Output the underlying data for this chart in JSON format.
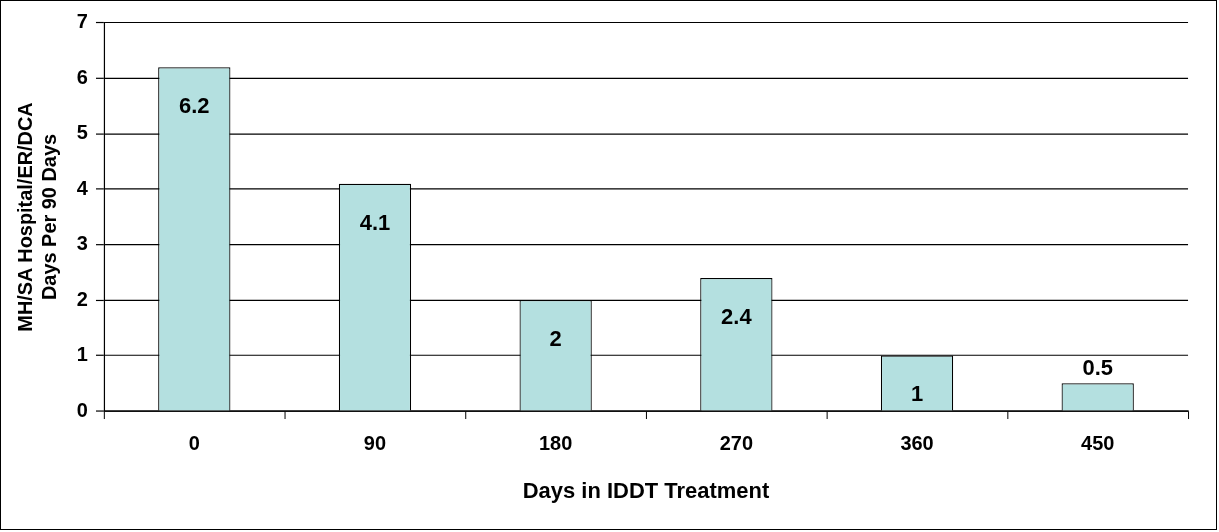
{
  "chart_data": {
    "type": "bar",
    "xlabel": "Days in IDDT Treatment",
    "ylabel": "MH/SA Hospital/ER/DCA\nDays Per 90 Days",
    "categories": [
      "0",
      "90",
      "180",
      "270",
      "360",
      "450"
    ],
    "values": [
      6.2,
      4.1,
      2,
      2.4,
      1,
      0.5
    ],
    "color": "#b4e0e0",
    "ylim": [
      0,
      7
    ],
    "yticks": [
      0,
      1,
      2,
      3,
      4,
      5,
      6,
      7
    ],
    "grid": "y",
    "legend": false,
    "data_labels": true
  }
}
